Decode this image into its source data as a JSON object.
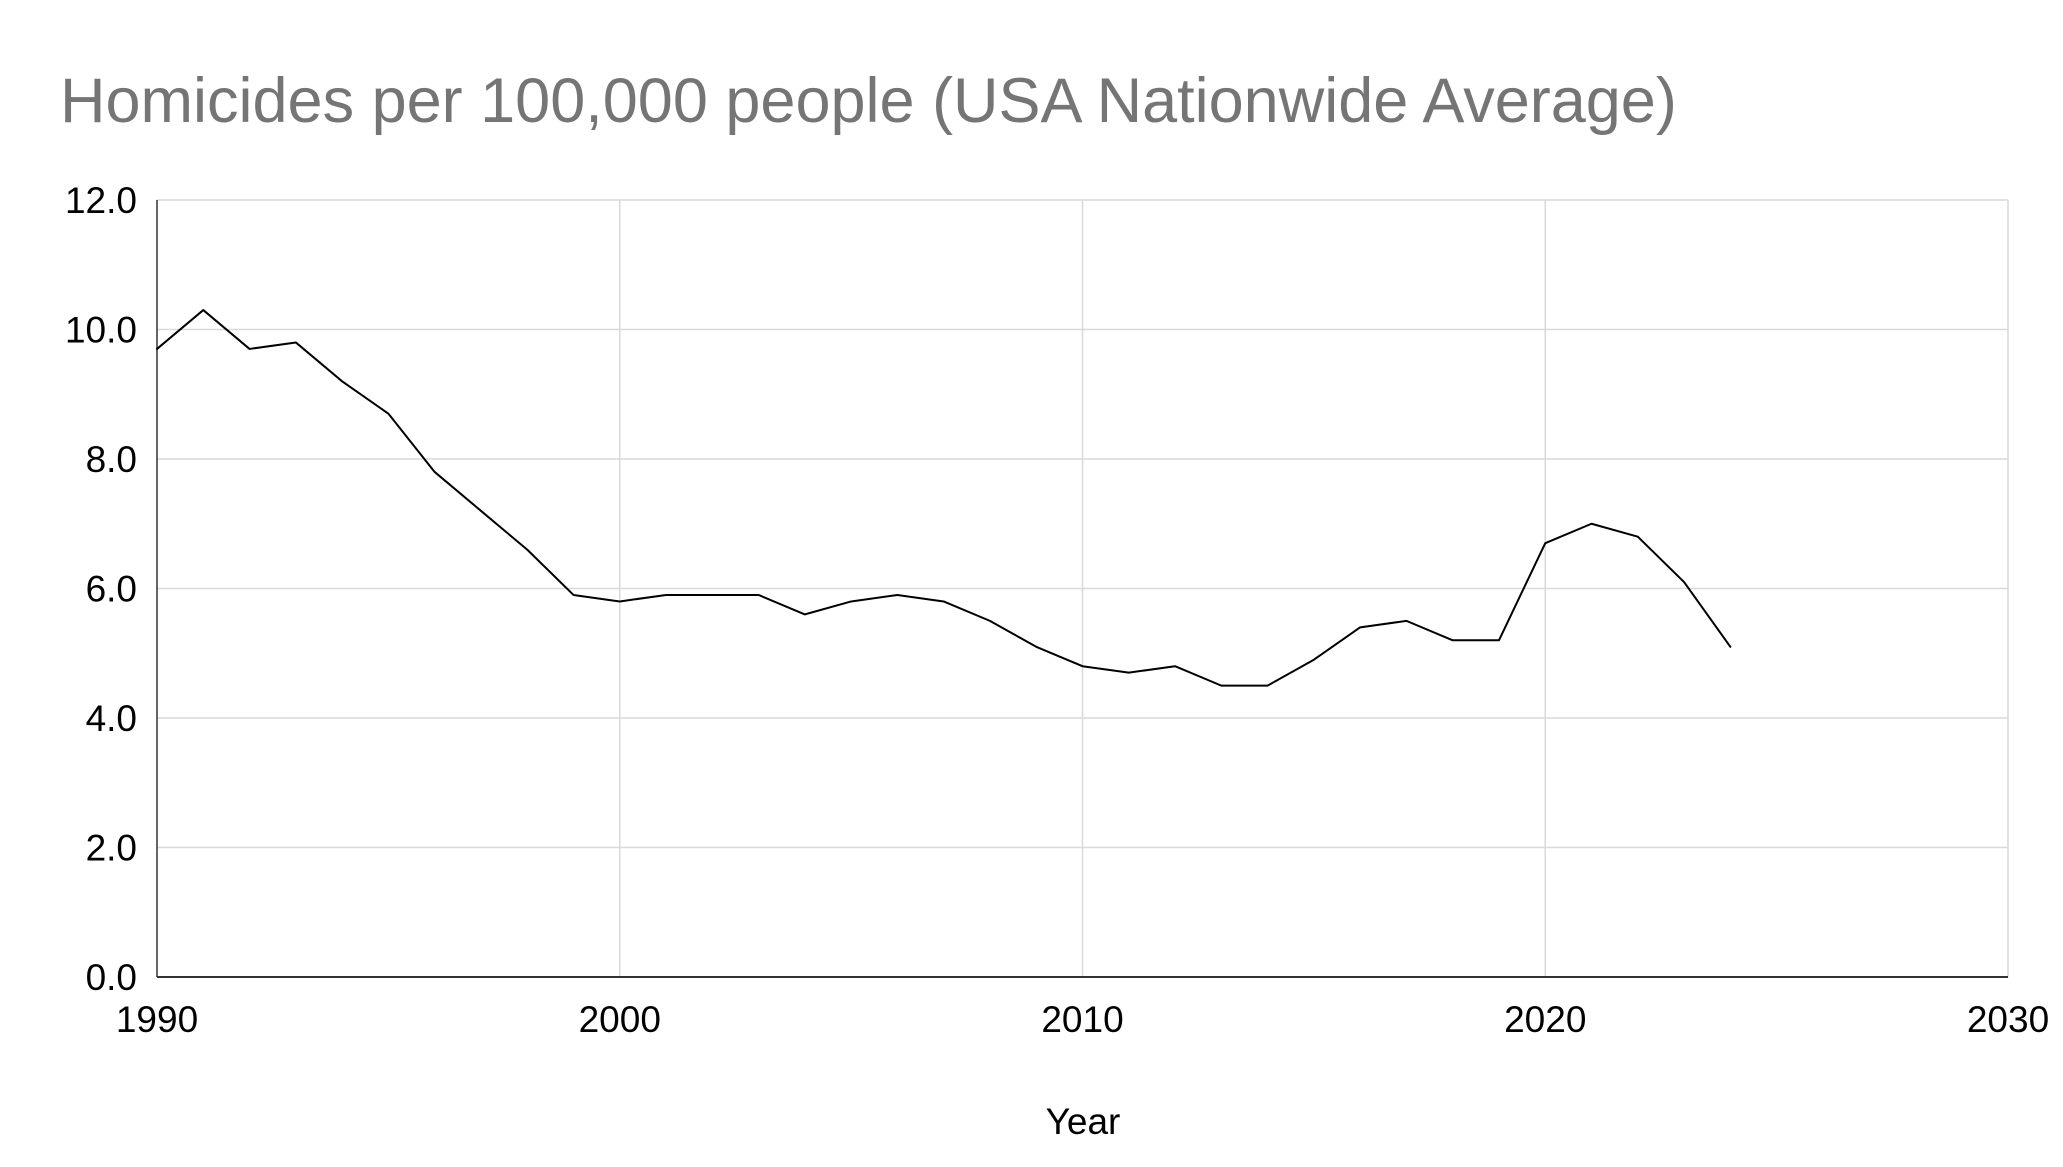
{
  "chart_data": {
    "type": "line",
    "title": "Homicides per 100,000 people (USA Nationwide Average)",
    "xlabel": "Year",
    "ylabel": "",
    "xlim": [
      1990,
      2030
    ],
    "ylim": [
      0,
      12
    ],
    "x_ticks": [
      1990,
      2000,
      2010,
      2020,
      2030
    ],
    "y_ticks": [
      0,
      2,
      4,
      6,
      8,
      10,
      12
    ],
    "x_tick_labels": [
      "1990",
      "2000",
      "2010",
      "2020",
      "2030"
    ],
    "y_tick_labels": [
      "0.0",
      "2.0",
      "4.0",
      "6.0",
      "8.0",
      "10.0",
      "12.0"
    ],
    "grid": true,
    "legend": "none",
    "series": [
      {
        "name": "Homicides per 100,000 people",
        "color": "#000000",
        "x": [
          1990,
          1991,
          1992,
          1993,
          1994,
          1995,
          1996,
          1997,
          1998,
          1999,
          2000,
          2001,
          2002,
          2003,
          2004,
          2005,
          2006,
          2007,
          2008,
          2009,
          2010,
          2011,
          2012,
          2013,
          2014,
          2015,
          2016,
          2017,
          2018,
          2019,
          2020,
          2021,
          2022,
          2023,
          2024
        ],
        "values": [
          9.7,
          10.3,
          9.7,
          9.8,
          9.2,
          8.7,
          7.8,
          7.2,
          6.6,
          5.9,
          5.8,
          5.9,
          5.9,
          5.9,
          5.6,
          5.8,
          5.9,
          5.8,
          5.5,
          5.1,
          4.8,
          4.7,
          4.8,
          4.5,
          4.5,
          4.9,
          5.4,
          5.5,
          5.2,
          5.2,
          6.7,
          7.0,
          6.8,
          6.1,
          5.1
        ]
      }
    ]
  },
  "colors": {
    "title": "#757575",
    "grid": "#d9d9d9",
    "axis": "#333333",
    "text": "#000000",
    "line": "#000000"
  }
}
